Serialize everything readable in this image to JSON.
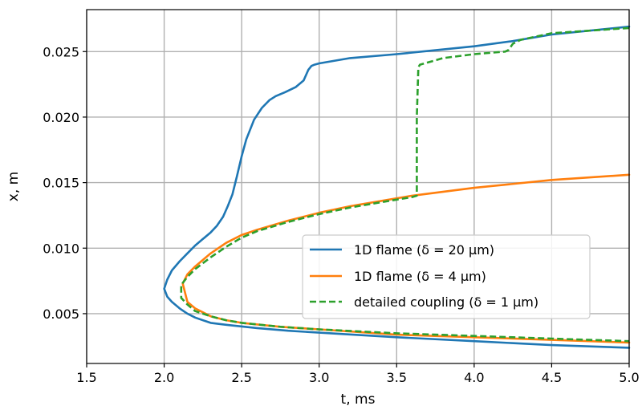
{
  "chart_data": {
    "type": "line",
    "xlabel": "t, ms",
    "ylabel": "x, m",
    "xlim": [
      1.5,
      5.0
    ],
    "ylim": [
      0.0012,
      0.0282
    ],
    "xticks": [
      1.5,
      2.0,
      2.5,
      3.0,
      3.5,
      4.0,
      4.5,
      5.0
    ],
    "xtick_labels": [
      "1.5",
      "2.0",
      "2.5",
      "3.0",
      "3.5",
      "4.0",
      "4.5",
      "5.0"
    ],
    "yticks": [
      0.005,
      0.01,
      0.015,
      0.02,
      0.025
    ],
    "ytick_labels": [
      "0.005",
      "0.010",
      "0.015",
      "0.020",
      "0.025"
    ],
    "grid": true,
    "legend_position": "center-right",
    "series": [
      {
        "name": "1D flame (δ = 20 μm)",
        "color": "#1f77b4",
        "style": "solid",
        "x": [
          5.0,
          4.5,
          4.25,
          4.0,
          3.5,
          3.2,
          3.0,
          2.97,
          2.95,
          2.93,
          2.9,
          2.85,
          2.78,
          2.72,
          2.68,
          2.63,
          2.58,
          2.53,
          2.5,
          2.47,
          2.44,
          2.41,
          2.38,
          2.34,
          2.3,
          2.25,
          2.2,
          2.15,
          2.1,
          2.05,
          2.02,
          2.0,
          2.02,
          2.05,
          2.1,
          2.15,
          2.2,
          2.3,
          2.4,
          2.6,
          2.8,
          3.0,
          3.5,
          4.0,
          4.5,
          5.0
        ],
        "y": [
          0.0269,
          0.0263,
          0.0258,
          0.0254,
          0.0248,
          0.0245,
          0.0241,
          0.024,
          0.0239,
          0.0236,
          0.0228,
          0.0223,
          0.0219,
          0.0216,
          0.0213,
          0.0207,
          0.0198,
          0.0183,
          0.017,
          0.0155,
          0.0141,
          0.0132,
          0.0124,
          0.0117,
          0.0112,
          0.0107,
          0.0102,
          0.0096,
          0.009,
          0.0083,
          0.0076,
          0.0069,
          0.0063,
          0.0059,
          0.0054,
          0.005,
          0.0047,
          0.0043,
          0.00415,
          0.0039,
          0.0037,
          0.00355,
          0.0032,
          0.0029,
          0.0026,
          0.0024
        ]
      },
      {
        "name": "1D flame (δ = 4 μm)",
        "color": "#ff7f0e",
        "style": "solid",
        "x": [
          5.0,
          4.5,
          4.0,
          3.6,
          3.5,
          3.2,
          3.0,
          2.8,
          2.6,
          2.5,
          2.4,
          2.3,
          2.2,
          2.15,
          2.12,
          2.15,
          2.2,
          2.25,
          2.3,
          2.4,
          2.5,
          2.75,
          3.0,
          3.5,
          4.0,
          4.5,
          5.0
        ],
        "y": [
          0.0156,
          0.0152,
          0.0146,
          0.014,
          0.0138,
          0.0132,
          0.0127,
          0.0121,
          0.0114,
          0.011,
          0.0104,
          0.0096,
          0.0086,
          0.008,
          0.0073,
          0.0059,
          0.0054,
          0.0051,
          0.0048,
          0.0045,
          0.0043,
          0.004,
          0.0038,
          0.0034,
          0.0032,
          0.003,
          0.0028
        ]
      },
      {
        "name": "detailed coupling (δ = 1 μm)",
        "color": "#2ca02c",
        "style": "dashed",
        "x": [
          5.0,
          4.5,
          4.3,
          4.25,
          4.22,
          4.2,
          4.0,
          3.8,
          3.65,
          3.64,
          3.63,
          3.63,
          3.6,
          3.5,
          3.2,
          3.0,
          2.8,
          2.6,
          2.5,
          2.4,
          2.3,
          2.2,
          2.15,
          2.11,
          2.11,
          2.15,
          2.2,
          2.3,
          2.4,
          2.5,
          2.75,
          3.0,
          3.5,
          4.0,
          4.5,
          5.0
        ],
        "y": [
          0.0268,
          0.0264,
          0.0259,
          0.0256,
          0.0251,
          0.025,
          0.0248,
          0.0245,
          0.024,
          0.0238,
          0.02,
          0.014,
          0.0139,
          0.0137,
          0.0131,
          0.0126,
          0.012,
          0.0113,
          0.0108,
          0.0101,
          0.0093,
          0.0084,
          0.0078,
          0.0072,
          0.0062,
          0.0057,
          0.0052,
          0.0048,
          0.0045,
          0.0043,
          0.004,
          0.0038,
          0.0035,
          0.0033,
          0.0031,
          0.0029
        ]
      }
    ]
  }
}
